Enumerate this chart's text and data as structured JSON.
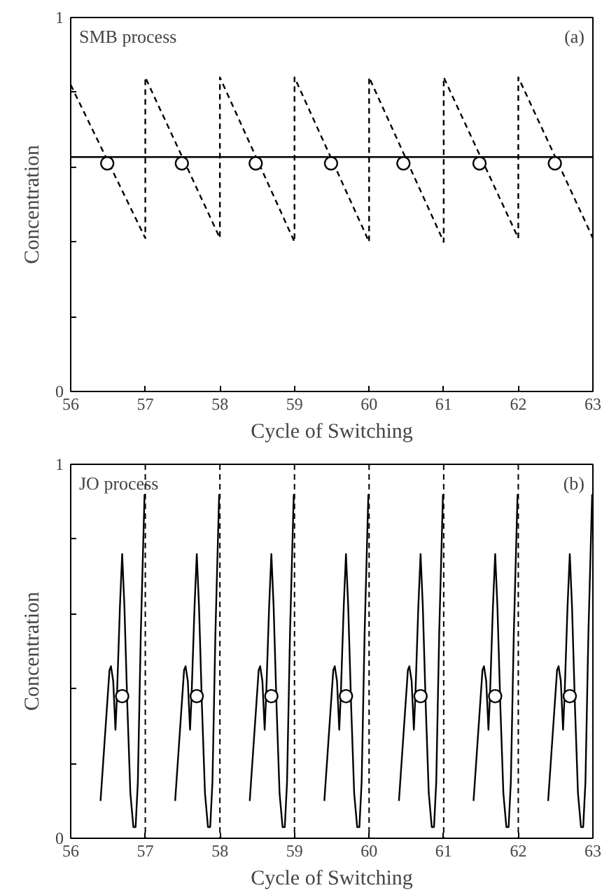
{
  "chart_data": [
    {
      "type": "line",
      "xlabel": "Cycle of Switching",
      "ylabel": "Concentration",
      "annotations": [
        "SMB process",
        "(a)"
      ],
      "xlim": [
        56,
        63
      ],
      "ylim": [
        0,
        1
      ],
      "xticks": [
        56,
        57,
        58,
        59,
        60,
        61,
        62,
        63
      ],
      "yticks": [
        0,
        {
          "value": 0.2,
          "label": null
        },
        {
          "value": 0.4,
          "label": null
        },
        {
          "value": 0.6,
          "label": null
        },
        {
          "value": 0.8,
          "label": null
        },
        1
      ],
      "grid": false,
      "series": [
        {
          "color": "#000000",
          "line_style": "dashed",
          "x": [
            56,
            57,
            57,
            58,
            58,
            59,
            59,
            60,
            60,
            61,
            61,
            62,
            62,
            63
          ],
          "values": [
            0.82,
            0.41,
            0.84,
            0.41,
            0.84,
            0.4,
            0.84,
            0.4,
            0.84,
            0.4,
            0.84,
            0.41,
            0.84,
            0.41
          ]
        },
        {
          "color": "#000000",
          "line_style": "solid",
          "x": [
            56,
            63
          ],
          "values": [
            0.627,
            0.627
          ]
        },
        {
          "type": "scatter",
          "color": "#000000",
          "marker": "circle",
          "x": [
            56.49,
            57.49,
            58.48,
            59.49,
            60.46,
            61.48,
            62.49
          ],
          "values": [
            0.61,
            0.61,
            0.61,
            0.61,
            0.61,
            0.61,
            0.61
          ]
        }
      ]
    },
    {
      "type": "line",
      "xlabel": "Cycle of Switching",
      "ylabel": "Concentration",
      "annotations": [
        "JO process",
        "(b)"
      ],
      "xlim": [
        56,
        63
      ],
      "ylim": [
        0,
        1
      ],
      "xticks": [
        56,
        57,
        58,
        59,
        60,
        61,
        62,
        63
      ],
      "yticks": [
        0,
        {
          "value": 0.2,
          "label": null
        },
        {
          "value": 0.4,
          "label": null
        },
        {
          "value": 0.6,
          "label": null
        },
        {
          "value": 0.8,
          "label": null
        },
        1
      ],
      "grid": false,
      "ref_lines": [
        {
          "axis": "x",
          "value": 57,
          "line_style": "dashed",
          "color": "#000000"
        },
        {
          "axis": "x",
          "value": 58,
          "line_style": "dashed",
          "color": "#000000"
        },
        {
          "axis": "x",
          "value": 59,
          "line_style": "dashed",
          "color": "#000000"
        },
        {
          "axis": "x",
          "value": 60,
          "line_style": "dashed",
          "color": "#000000"
        },
        {
          "axis": "x",
          "value": 61,
          "line_style": "dashed",
          "color": "#000000"
        },
        {
          "axis": "x",
          "value": 62,
          "line_style": "dashed",
          "color": "#000000"
        }
      ],
      "series": [
        {
          "color": "#000000",
          "line_style": "solid",
          "x": [
            56.4,
            56.52,
            56.54,
            56.57,
            56.6,
            56.62,
            56.66,
            56.69,
            56.72,
            56.76,
            56.8,
            56.84,
            56.87,
            56.9,
            56.94,
            56.99,
            56.995,
            57.4,
            57.52,
            57.54,
            57.57,
            57.6,
            57.62,
            57.66,
            57.69,
            57.72,
            57.76,
            57.8,
            57.84,
            57.87,
            57.9,
            57.94,
            57.99,
            57.995,
            58.4,
            58.52,
            58.54,
            58.57,
            58.6,
            58.62,
            58.66,
            58.69,
            58.72,
            58.76,
            58.8,
            58.84,
            58.87,
            58.9,
            58.94,
            58.99,
            58.995,
            59.4,
            59.52,
            59.54,
            59.57,
            59.6,
            59.62,
            59.66,
            59.69,
            59.72,
            59.76,
            59.8,
            59.84,
            59.87,
            59.9,
            59.94,
            59.99,
            59.995,
            60.4,
            60.52,
            60.54,
            60.57,
            60.6,
            60.62,
            60.66,
            60.69,
            60.72,
            60.76,
            60.8,
            60.84,
            60.87,
            60.9,
            60.94,
            60.99,
            60.995,
            61.4,
            61.52,
            61.54,
            61.57,
            61.6,
            61.62,
            61.66,
            61.69,
            61.72,
            61.76,
            61.8,
            61.84,
            61.87,
            61.9,
            61.94,
            61.99,
            61.995,
            62.4,
            62.52,
            62.54,
            62.57,
            62.6,
            62.62,
            62.66,
            62.69,
            62.72,
            62.76,
            62.8,
            62.84,
            62.87,
            62.9,
            62.94,
            62.99
          ],
          "values": [
            0.1,
            0.45,
            0.46,
            0.42,
            0.29,
            0.38,
            0.62,
            0.76,
            0.62,
            0.35,
            0.12,
            0.03,
            0.03,
            0.15,
            0.55,
            0.92,
            null,
            0.1,
            0.45,
            0.46,
            0.42,
            0.29,
            0.38,
            0.62,
            0.76,
            0.62,
            0.35,
            0.12,
            0.03,
            0.03,
            0.15,
            0.55,
            0.92,
            null,
            0.1,
            0.45,
            0.46,
            0.42,
            0.29,
            0.38,
            0.62,
            0.76,
            0.62,
            0.35,
            0.12,
            0.03,
            0.03,
            0.15,
            0.55,
            0.92,
            null,
            0.1,
            0.45,
            0.46,
            0.42,
            0.29,
            0.38,
            0.62,
            0.76,
            0.62,
            0.35,
            0.12,
            0.03,
            0.03,
            0.15,
            0.55,
            0.92,
            null,
            0.1,
            0.45,
            0.46,
            0.42,
            0.29,
            0.38,
            0.62,
            0.76,
            0.62,
            0.35,
            0.12,
            0.03,
            0.03,
            0.15,
            0.55,
            0.92,
            null,
            0.1,
            0.45,
            0.46,
            0.42,
            0.29,
            0.38,
            0.62,
            0.76,
            0.62,
            0.35,
            0.12,
            0.03,
            0.03,
            0.15,
            0.55,
            0.92,
            null,
            0.1,
            0.45,
            0.46,
            0.42,
            0.29,
            0.38,
            0.62,
            0.76,
            0.62,
            0.35,
            0.12,
            0.03,
            0.03,
            0.15,
            0.55,
            0.92
          ]
        },
        {
          "type": "scatter",
          "color": "#000000",
          "marker": "circle",
          "x": [
            56.69,
            57.69,
            58.69,
            59.69,
            60.69,
            61.69,
            62.69
          ],
          "values": [
            0.38,
            0.38,
            0.38,
            0.38,
            0.38,
            0.38,
            0.38
          ]
        }
      ]
    }
  ]
}
